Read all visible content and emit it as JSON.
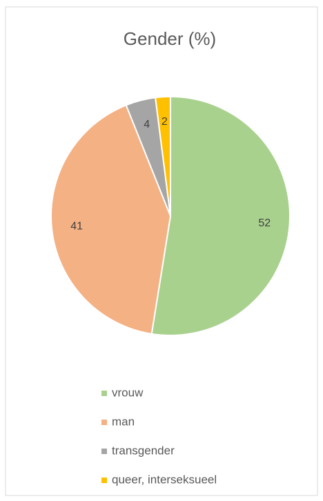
{
  "chart_data": {
    "type": "pie",
    "title": "Gender (%)",
    "categories": [
      "vrouw",
      "man",
      "transgender",
      "queer, interseksueel"
    ],
    "values": [
      52,
      41,
      4,
      2
    ],
    "colors": [
      "#a9d18e",
      "#f4b183",
      "#a5a5a5",
      "#ffc000"
    ],
    "legend": "bottom"
  }
}
